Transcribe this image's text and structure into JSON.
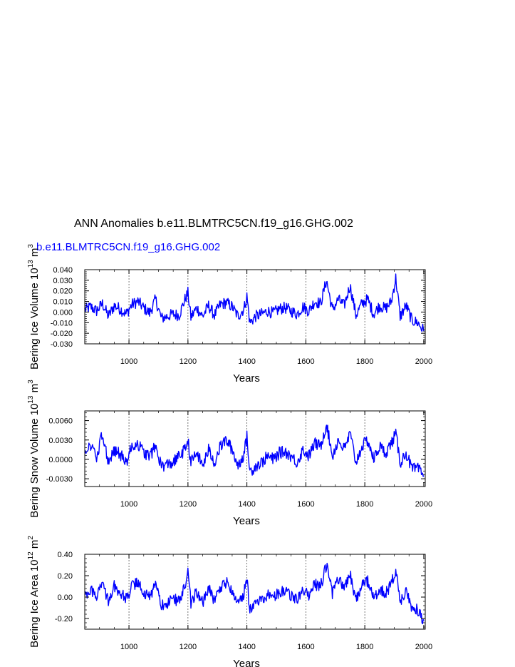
{
  "title": "ANN Anomalies b.e11.BLMTRC5CN.f19_g16.GHG.002",
  "case_label": "b.e11.BLMTRC5CN.f19_g16.GHG.002",
  "colors": {
    "series": "#0000ff",
    "axis": "#000000"
  },
  "chart_data": [
    {
      "type": "line",
      "ylabel": "Bering Ice Volume 10",
      "ylabel_exp": "13",
      "ylabel_unit": "m",
      "ylabel_unit_exp": "3",
      "xlabel": "Years",
      "xlim": [
        850,
        2005
      ],
      "ylim": [
        -0.03,
        0.04
      ],
      "yticks": [
        -0.03,
        -0.02,
        -0.01,
        0.0,
        0.01,
        0.02,
        0.03,
        0.04
      ],
      "yticklabels": [
        "-0.030",
        "-0.020",
        "-0.010",
        "0.000",
        "0.010",
        "0.020",
        "0.030",
        "0.040"
      ],
      "xticks": [
        1000,
        1200,
        1400,
        1600,
        1800,
        2000
      ],
      "xticklabels": [
        "1000",
        "1200",
        "1400",
        "1600",
        "1800",
        "2000"
      ],
      "gridlines_x": [
        1000,
        1200,
        1400,
        1600,
        1800
      ],
      "series": [
        {
          "name": "b.e11.BLMTRC5CN.f19_g16.GHG.002",
          "x": [
            850,
            870,
            890,
            910,
            930,
            950,
            970,
            990,
            1010,
            1030,
            1050,
            1070,
            1090,
            1110,
            1130,
            1150,
            1170,
            1190,
            1200,
            1210,
            1230,
            1250,
            1270,
            1290,
            1310,
            1330,
            1350,
            1370,
            1390,
            1400,
            1410,
            1430,
            1450,
            1470,
            1490,
            1510,
            1530,
            1550,
            1570,
            1590,
            1610,
            1630,
            1650,
            1670,
            1690,
            1710,
            1730,
            1750,
            1770,
            1790,
            1810,
            1830,
            1850,
            1870,
            1890,
            1905,
            1920,
            1940,
            1960,
            1980,
            2000
          ],
          "values": [
            0.002,
            0.005,
            0.001,
            0.008,
            -0.004,
            0.006,
            0.003,
            -0.002,
            0.007,
            0.01,
            0.004,
            -0.001,
            0.012,
            -0.006,
            -0.004,
            -0.002,
            -0.003,
            0.012,
            0.018,
            -0.005,
            0.004,
            -0.004,
            0.006,
            -0.003,
            0.007,
            0.009,
            0.005,
            -0.004,
            0.003,
            0.015,
            -0.01,
            -0.004,
            -0.002,
            0.001,
            -0.001,
            0.003,
            0.004,
            0.001,
            -0.002,
            0.005,
            0.001,
            0.01,
            0.008,
            0.03,
            0.002,
            0.012,
            0.006,
            0.025,
            -0.003,
            0.008,
            0.012,
            -0.002,
            0.006,
            0.003,
            0.01,
            0.032,
            -0.004,
            0.006,
            -0.008,
            -0.01,
            -0.018
          ]
        }
      ]
    },
    {
      "type": "line",
      "ylabel": "Bering Snow Volume 10",
      "ylabel_exp": "13",
      "ylabel_unit": "m",
      "ylabel_unit_exp": "3",
      "xlabel": "Years",
      "xlim": [
        850,
        2005
      ],
      "ylim": [
        -0.0042,
        0.0075
      ],
      "yticks": [
        -0.003,
        0.0,
        0.003,
        0.006
      ],
      "yticklabels": [
        "-0.0030",
        "0.0000",
        "0.0030",
        "0.0060"
      ],
      "xticks": [
        1000,
        1200,
        1400,
        1600,
        1800,
        2000
      ],
      "xticklabels": [
        "1000",
        "1200",
        "1400",
        "1600",
        "1800",
        "2000"
      ],
      "gridlines_x": [
        1000,
        1200,
        1400,
        1600,
        1800
      ],
      "series": [
        {
          "name": "b.e11.BLMTRC5CN.f19_g16.GHG.002",
          "x": [
            850,
            870,
            890,
            910,
            930,
            950,
            970,
            990,
            1010,
            1030,
            1050,
            1070,
            1090,
            1110,
            1130,
            1150,
            1170,
            1190,
            1200,
            1210,
            1230,
            1250,
            1270,
            1290,
            1310,
            1330,
            1350,
            1370,
            1390,
            1400,
            1410,
            1430,
            1450,
            1470,
            1490,
            1510,
            1530,
            1550,
            1570,
            1590,
            1610,
            1630,
            1650,
            1670,
            1690,
            1710,
            1730,
            1750,
            1770,
            1790,
            1810,
            1830,
            1850,
            1870,
            1890,
            1905,
            1920,
            1940,
            1960,
            1980,
            2000
          ],
          "values": [
            0.0015,
            0.002,
            0.0002,
            0.004,
            -0.0005,
            0.0015,
            0.0008,
            -0.0005,
            0.002,
            0.0025,
            0.001,
            0.0005,
            0.002,
            -0.001,
            -0.0008,
            -0.0005,
            0.0005,
            0.0015,
            0.003,
            -0.0005,
            0.001,
            -0.001,
            0.0015,
            -0.0005,
            0.002,
            0.003,
            0.0015,
            -0.001,
            0.0008,
            0.0035,
            -0.002,
            -0.001,
            -0.0005,
            0.0005,
            0.0,
            0.001,
            0.0012,
            0.0005,
            -0.0005,
            0.0015,
            0.0005,
            0.0025,
            0.002,
            0.0055,
            0.0005,
            0.003,
            0.0015,
            0.004,
            -0.0005,
            0.002,
            0.003,
            0.0,
            0.002,
            0.001,
            0.0025,
            0.004,
            -0.0005,
            0.001,
            -0.0015,
            -0.0015,
            -0.0025
          ]
        }
      ]
    },
    {
      "type": "line",
      "ylabel": "Bering Ice Area 10",
      "ylabel_exp": "12",
      "ylabel_unit": "m",
      "ylabel_unit_exp": "2",
      "xlabel": "Years",
      "xlim": [
        850,
        2005
      ],
      "ylim": [
        -0.3,
        0.4
      ],
      "yticks": [
        -0.2,
        0.0,
        0.2,
        0.4
      ],
      "yticklabels": [
        "-0.20",
        "0.00",
        "0.20",
        "0.40"
      ],
      "xticks": [
        1000,
        1200,
        1400,
        1600,
        1800,
        2000
      ],
      "xticklabels": [
        "1000",
        "1200",
        "1400",
        "1600",
        "1800",
        "2000"
      ],
      "gridlines_x": [
        1000,
        1200,
        1400,
        1600,
        1800
      ],
      "series": [
        {
          "name": "b.e11.BLMTRC5CN.f19_g16.GHG.002",
          "x": [
            850,
            870,
            890,
            910,
            930,
            950,
            970,
            990,
            1010,
            1030,
            1050,
            1070,
            1090,
            1110,
            1130,
            1150,
            1170,
            1190,
            1200,
            1210,
            1230,
            1250,
            1270,
            1290,
            1310,
            1330,
            1350,
            1370,
            1390,
            1400,
            1410,
            1430,
            1450,
            1470,
            1490,
            1510,
            1530,
            1550,
            1570,
            1590,
            1610,
            1630,
            1650,
            1670,
            1690,
            1710,
            1730,
            1750,
            1770,
            1790,
            1810,
            1830,
            1850,
            1870,
            1890,
            1905,
            1920,
            1940,
            1960,
            1980,
            2000
          ],
          "values": [
            0.02,
            0.08,
            0.0,
            0.15,
            -0.05,
            0.1,
            0.05,
            -0.02,
            0.1,
            0.14,
            0.05,
            0.0,
            0.12,
            -0.08,
            -0.05,
            -0.03,
            -0.02,
            0.1,
            0.22,
            -0.05,
            0.05,
            -0.05,
            0.08,
            -0.03,
            0.1,
            0.14,
            0.07,
            -0.05,
            0.04,
            0.16,
            -0.12,
            -0.05,
            -0.03,
            0.02,
            -0.02,
            0.05,
            0.06,
            0.02,
            -0.03,
            0.08,
            0.02,
            0.12,
            0.1,
            0.3,
            0.03,
            0.16,
            0.08,
            0.22,
            -0.03,
            0.1,
            0.15,
            -0.02,
            0.08,
            0.04,
            0.12,
            0.26,
            -0.05,
            0.08,
            -0.1,
            -0.12,
            -0.22
          ]
        }
      ]
    }
  ]
}
